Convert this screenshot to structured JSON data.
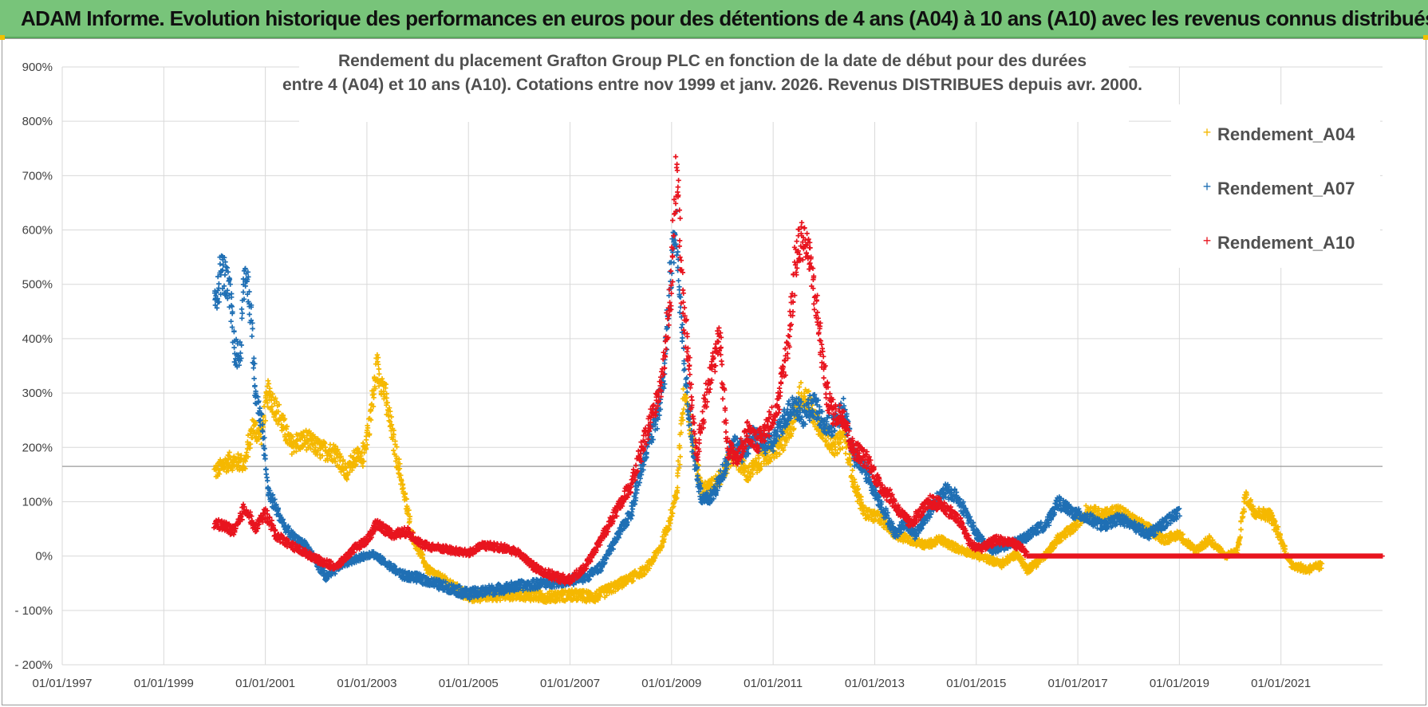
{
  "banner": {
    "text": "ADAM Informe. Evolution historique des performances en euros pour des détentions de 4 ans (A04) à 10 ans (A10) avec les revenus connus distribués",
    "color": "#78c47a"
  },
  "chart_data": {
    "type": "scatter",
    "title_lines": [
      "Rendement du placement Grafton Group PLC en fonction de la date de début pour des durées",
      "entre 4 (A04) et 10 ans (A10).  Cotations entre nov 1999 et janv. 2026. Revenus DISTRIBUES depuis avr. 2000."
    ],
    "x_tick_labels": [
      "01/01/1997",
      "01/01/1999",
      "01/01/2001",
      "01/01/2003",
      "01/01/2005",
      "01/01/2007",
      "01/01/2009",
      "01/01/2011",
      "01/01/2013",
      "01/01/2015",
      "01/01/2017",
      "01/01/2019",
      "01/01/2021"
    ],
    "x_range": [
      1997.0,
      2023.0
    ],
    "y_tick_labels": [
      "900%",
      "800%",
      "700%",
      "600%",
      "500%",
      "400%",
      "300%",
      "200%",
      "100%",
      "0%",
      "- 100%",
      "- 200%"
    ],
    "y_range": [
      -200,
      900
    ],
    "reference_line_y": 165,
    "legend_position": "top-right",
    "series": [
      {
        "name": "Rendement_A04",
        "color": "#f5b800",
        "keypoints": [
          [
            2000.0,
            155
          ],
          [
            2000.3,
            175
          ],
          [
            2000.6,
            170
          ],
          [
            2000.75,
            240
          ],
          [
            2000.9,
            220
          ],
          [
            2001.05,
            300
          ],
          [
            2001.2,
            275
          ],
          [
            2001.5,
            205
          ],
          [
            2001.8,
            215
          ],
          [
            2002.1,
            195
          ],
          [
            2002.4,
            190
          ],
          [
            2002.6,
            150
          ],
          [
            2002.75,
            185
          ],
          [
            2002.9,
            175
          ],
          [
            2003.05,
            245
          ],
          [
            2003.2,
            350
          ],
          [
            2003.35,
            300
          ],
          [
            2003.55,
            200
          ],
          [
            2003.7,
            130
          ],
          [
            2003.9,
            35
          ],
          [
            2004.2,
            -25
          ],
          [
            2004.6,
            -50
          ],
          [
            2005.0,
            -75
          ],
          [
            2005.5,
            -72
          ],
          [
            2006.0,
            -70
          ],
          [
            2006.5,
            -75
          ],
          [
            2007.0,
            -72
          ],
          [
            2007.5,
            -75
          ],
          [
            2007.9,
            -55
          ],
          [
            2008.2,
            -40
          ],
          [
            2008.5,
            -25
          ],
          [
            2008.8,
            20
          ],
          [
            2008.95,
            60
          ],
          [
            2009.1,
            120
          ],
          [
            2009.25,
            300
          ],
          [
            2009.4,
            220
          ],
          [
            2009.6,
            120
          ],
          [
            2009.8,
            130
          ],
          [
            2010.0,
            150
          ],
          [
            2010.2,
            190
          ],
          [
            2010.5,
            150
          ],
          [
            2010.8,
            180
          ],
          [
            2011.1,
            200
          ],
          [
            2011.3,
            220
          ],
          [
            2011.55,
            300
          ],
          [
            2011.7,
            280
          ],
          [
            2011.85,
            250
          ],
          [
            2012.0,
            230
          ],
          [
            2012.2,
            200
          ],
          [
            2012.4,
            220
          ],
          [
            2012.6,
            130
          ],
          [
            2012.8,
            80
          ],
          [
            2013.1,
            70
          ],
          [
            2013.4,
            40
          ],
          [
            2013.7,
            30
          ],
          [
            2014.0,
            20
          ],
          [
            2014.3,
            30
          ],
          [
            2014.6,
            15
          ],
          [
            2014.9,
            5
          ],
          [
            2015.2,
            -5
          ],
          [
            2015.5,
            -15
          ],
          [
            2015.8,
            5
          ],
          [
            2016.0,
            -25
          ],
          [
            2016.3,
            -5
          ],
          [
            2016.6,
            30
          ],
          [
            2016.9,
            50
          ],
          [
            2017.2,
            85
          ],
          [
            2017.5,
            75
          ],
          [
            2017.8,
            85
          ],
          [
            2018.1,
            65
          ],
          [
            2018.4,
            50
          ],
          [
            2018.7,
            30
          ],
          [
            2019.0,
            40
          ],
          [
            2019.3,
            10
          ],
          [
            2019.6,
            30
          ],
          [
            2019.9,
            0
          ],
          [
            2020.15,
            10
          ],
          [
            2020.3,
            110
          ],
          [
            2020.5,
            80
          ],
          [
            2020.8,
            75
          ],
          [
            2020.95,
            40
          ],
          [
            2021.2,
            -15
          ],
          [
            2021.5,
            -25
          ],
          [
            2021.8,
            -18
          ]
        ]
      },
      {
        "name": "Rendement_A07",
        "color": "#1f6fb4",
        "keypoints": [
          [
            2000.0,
            470
          ],
          [
            2000.15,
            530
          ],
          [
            2000.3,
            480
          ],
          [
            2000.4,
            380
          ],
          [
            2000.5,
            360
          ],
          [
            2000.6,
            530
          ],
          [
            2000.7,
            470
          ],
          [
            2000.8,
            300
          ],
          [
            2000.95,
            230
          ],
          [
            2001.05,
            120
          ],
          [
            2001.2,
            90
          ],
          [
            2001.4,
            50
          ],
          [
            2001.6,
            30
          ],
          [
            2001.8,
            20
          ],
          [
            2002.0,
            -10
          ],
          [
            2002.2,
            -40
          ],
          [
            2002.5,
            -15
          ],
          [
            2002.8,
            -5
          ],
          [
            2003.1,
            5
          ],
          [
            2003.4,
            -15
          ],
          [
            2003.7,
            -35
          ],
          [
            2004.0,
            -40
          ],
          [
            2004.5,
            -55
          ],
          [
            2005.0,
            -70
          ],
          [
            2005.5,
            -62
          ],
          [
            2006.0,
            -55
          ],
          [
            2006.5,
            -50
          ],
          [
            2007.0,
            -45
          ],
          [
            2007.3,
            -40
          ],
          [
            2007.6,
            -20
          ],
          [
            2007.9,
            30
          ],
          [
            2008.2,
            80
          ],
          [
            2008.5,
            200
          ],
          [
            2008.7,
            250
          ],
          [
            2008.85,
            330
          ],
          [
            2009.0,
            550
          ],
          [
            2009.1,
            600
          ],
          [
            2009.2,
            420
          ],
          [
            2009.3,
            300
          ],
          [
            2009.45,
            180
          ],
          [
            2009.6,
            100
          ],
          [
            2009.8,
            110
          ],
          [
            2010.0,
            150
          ],
          [
            2010.2,
            210
          ],
          [
            2010.4,
            190
          ],
          [
            2010.6,
            220
          ],
          [
            2010.8,
            205
          ],
          [
            2011.0,
            210
          ],
          [
            2011.2,
            250
          ],
          [
            2011.4,
            280
          ],
          [
            2011.6,
            260
          ],
          [
            2011.8,
            280
          ],
          [
            2012.0,
            240
          ],
          [
            2012.2,
            240
          ],
          [
            2012.4,
            270
          ],
          [
            2012.6,
            180
          ],
          [
            2012.8,
            160
          ],
          [
            2013.0,
            120
          ],
          [
            2013.2,
            80
          ],
          [
            2013.4,
            40
          ],
          [
            2013.6,
            60
          ],
          [
            2013.8,
            40
          ],
          [
            2014.0,
            70
          ],
          [
            2014.2,
            100
          ],
          [
            2014.4,
            120
          ],
          [
            2014.6,
            110
          ],
          [
            2014.8,
            80
          ],
          [
            2015.0,
            40
          ],
          [
            2015.3,
            10
          ],
          [
            2015.6,
            20
          ],
          [
            2015.9,
            30
          ],
          [
            2016.2,
            50
          ],
          [
            2016.4,
            60
          ],
          [
            2016.6,
            100
          ],
          [
            2016.9,
            80
          ],
          [
            2017.2,
            70
          ],
          [
            2017.5,
            55
          ],
          [
            2017.8,
            70
          ],
          [
            2018.1,
            55
          ],
          [
            2018.4,
            40
          ],
          [
            2018.7,
            60
          ],
          [
            2019.0,
            80
          ]
        ]
      },
      {
        "name": "Rendement_A10",
        "color": "#e8141e",
        "keypoints": [
          [
            2000.0,
            60
          ],
          [
            2000.2,
            55
          ],
          [
            2000.4,
            45
          ],
          [
            2000.6,
            90
          ],
          [
            2000.8,
            50
          ],
          [
            2001.0,
            80
          ],
          [
            2001.2,
            40
          ],
          [
            2001.5,
            20
          ],
          [
            2001.8,
            5
          ],
          [
            2002.1,
            -10
          ],
          [
            2002.4,
            -20
          ],
          [
            2002.7,
            10
          ],
          [
            2003.0,
            30
          ],
          [
            2003.2,
            60
          ],
          [
            2003.5,
            40
          ],
          [
            2003.8,
            45
          ],
          [
            2004.1,
            20
          ],
          [
            2004.4,
            15
          ],
          [
            2004.7,
            10
          ],
          [
            2005.0,
            5
          ],
          [
            2005.3,
            20
          ],
          [
            2005.7,
            15
          ],
          [
            2006.0,
            5
          ],
          [
            2006.3,
            -20
          ],
          [
            2006.6,
            -35
          ],
          [
            2007.0,
            -45
          ],
          [
            2007.3,
            -20
          ],
          [
            2007.6,
            30
          ],
          [
            2007.9,
            80
          ],
          [
            2008.2,
            130
          ],
          [
            2008.5,
            220
          ],
          [
            2008.8,
            320
          ],
          [
            2009.0,
            500
          ],
          [
            2009.1,
            720
          ],
          [
            2009.2,
            500
          ],
          [
            2009.35,
            340
          ],
          [
            2009.5,
            180
          ],
          [
            2009.65,
            280
          ],
          [
            2009.8,
            350
          ],
          [
            2009.95,
            400
          ],
          [
            2010.1,
            200
          ],
          [
            2010.3,
            180
          ],
          [
            2010.5,
            230
          ],
          [
            2010.7,
            210
          ],
          [
            2010.9,
            240
          ],
          [
            2011.1,
            280
          ],
          [
            2011.3,
            400
          ],
          [
            2011.45,
            550
          ],
          [
            2011.6,
            590
          ],
          [
            2011.75,
            530
          ],
          [
            2011.9,
            420
          ],
          [
            2012.05,
            300
          ],
          [
            2012.2,
            260
          ],
          [
            2012.4,
            260
          ],
          [
            2012.55,
            200
          ],
          [
            2012.7,
            190
          ],
          [
            2012.9,
            170
          ],
          [
            2013.1,
            130
          ],
          [
            2013.3,
            110
          ],
          [
            2013.5,
            80
          ],
          [
            2013.7,
            60
          ],
          [
            2013.9,
            80
          ],
          [
            2014.1,
            100
          ],
          [
            2014.3,
            95
          ],
          [
            2014.5,
            80
          ],
          [
            2014.7,
            60
          ],
          [
            2014.9,
            20
          ],
          [
            2015.1,
            15
          ],
          [
            2015.4,
            30
          ],
          [
            2015.7,
            25
          ],
          [
            2015.9,
            15
          ],
          [
            2016.0,
            0
          ],
          [
            2023.0,
            0
          ]
        ]
      }
    ]
  }
}
